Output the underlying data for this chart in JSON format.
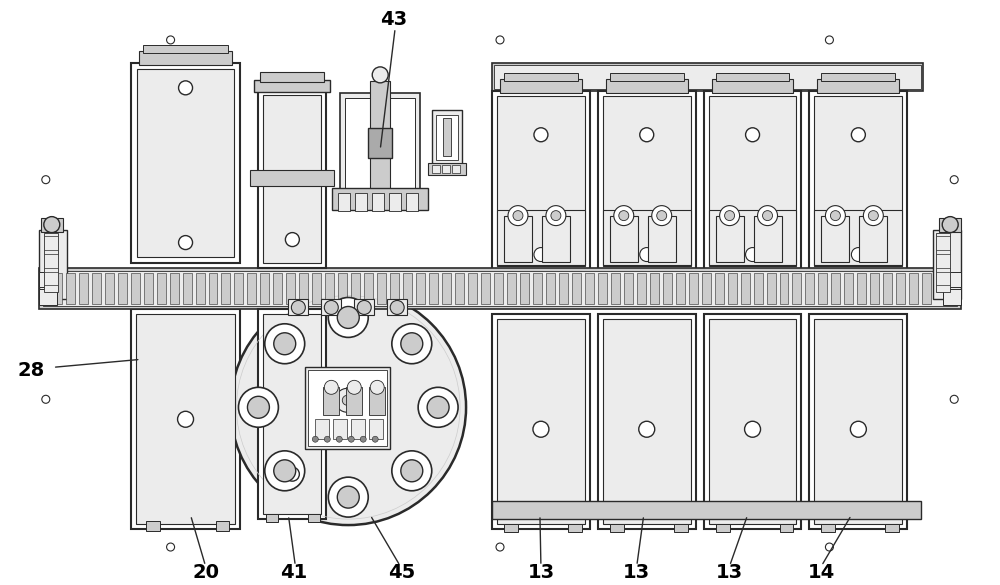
{
  "bg_color": "#ffffff",
  "lc": "#2a2a2a",
  "fl": "#ececec",
  "fm": "#cccccc",
  "fd": "#aaaaaa",
  "fdk": "#888888",
  "white": "#ffffff",
  "figsize": [
    10.0,
    5.85
  ],
  "dpi": 100
}
